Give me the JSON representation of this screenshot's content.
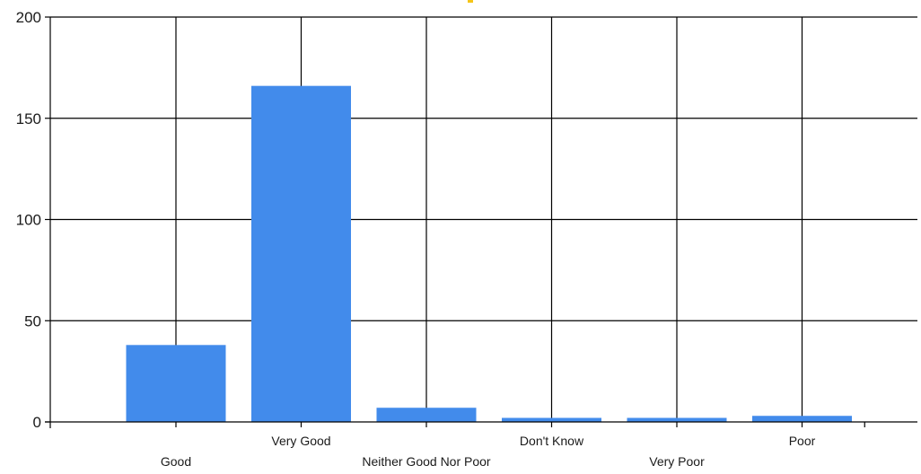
{
  "chart_data": {
    "type": "bar",
    "title": "",
    "xlabel": "",
    "ylabel": "",
    "categories": [
      "Good",
      "Very Good",
      "Neither Good Nor Poor",
      "Don't Know",
      "Very Poor",
      "Poor"
    ],
    "values": [
      38,
      166,
      7,
      2,
      2,
      3
    ],
    "ylim": [
      0,
      200
    ],
    "yticks": [
      0,
      50,
      100,
      150,
      200
    ],
    "grid": true,
    "legend": "none",
    "bar_color": "#428BEB",
    "accent_mark_color": "#F5C518"
  }
}
